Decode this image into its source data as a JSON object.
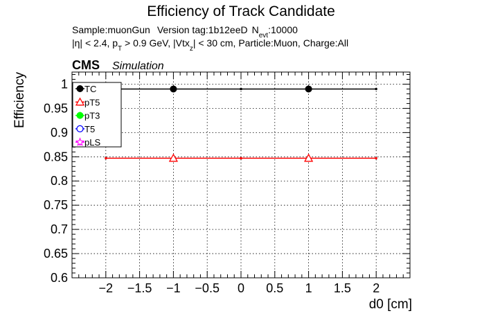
{
  "chart_data": {
    "type": "scatter",
    "title": "Efficiency of Track Candidate",
    "subtitle_line1": {
      "sample": "Sample:muonGun",
      "version": "Version tag:1b12eeD",
      "n": "N",
      "n_sub": "evt",
      "n_val": ":10000"
    },
    "subtitle_line2": {
      "eta": "|η| < 2.4, p",
      "pt_sub": "T",
      "pt": " > 0.9 GeV, |Vtx",
      "vtx_sub": "z",
      "rest": "| < 30 cm, Particle:Muon, Charge:All"
    },
    "cms_label": "CMS",
    "sim_label": "Simulation",
    "xlabel": "d0 [cm]",
    "ylabel": "Efficiency",
    "xlim": [
      -2.5,
      2.5
    ],
    "ylim": [
      0.6,
      1.025
    ],
    "grid": true,
    "x_ticks": [
      -2,
      -1.5,
      -1,
      -0.5,
      0,
      0.5,
      1,
      1.5,
      2
    ],
    "x_tick_labels": [
      "−2",
      "−1.5",
      "−1",
      "−0.5",
      "0",
      "0.5",
      "1",
      "1.5",
      "2"
    ],
    "y_ticks": [
      0.6,
      0.65,
      0.7,
      0.75,
      0.8,
      0.85,
      0.9,
      0.95,
      1
    ],
    "y_tick_labels": [
      "0.6",
      "0.65",
      "0.7",
      "0.75",
      "0.8",
      "0.85",
      "0.9",
      "0.95",
      "1"
    ],
    "legend_position": "top-left",
    "series": [
      {
        "name": "TC",
        "color": "#000000",
        "marker": "filled-circle",
        "bins": [
          [
            -2,
            0
          ],
          [
            0,
            2
          ]
        ],
        "x": [
          -1,
          1
        ],
        "y": [
          0.99,
          0.99
        ]
      },
      {
        "name": "pT5",
        "color": "#ff0000",
        "marker": "open-triangle",
        "bins": [
          [
            -2,
            0
          ],
          [
            0,
            2
          ]
        ],
        "x": [
          -1,
          1
        ],
        "y": [
          0.847,
          0.847
        ]
      },
      {
        "name": "pT3",
        "color": "#00ff00",
        "marker": "filled-circle",
        "bins": [],
        "x": [],
        "y": []
      },
      {
        "name": "T5",
        "color": "#0000ff",
        "marker": "open-circle",
        "bins": [],
        "x": [],
        "y": []
      },
      {
        "name": "pLS",
        "color": "#ff00ff",
        "marker": "open-star",
        "bins": [],
        "x": [],
        "y": []
      }
    ]
  }
}
